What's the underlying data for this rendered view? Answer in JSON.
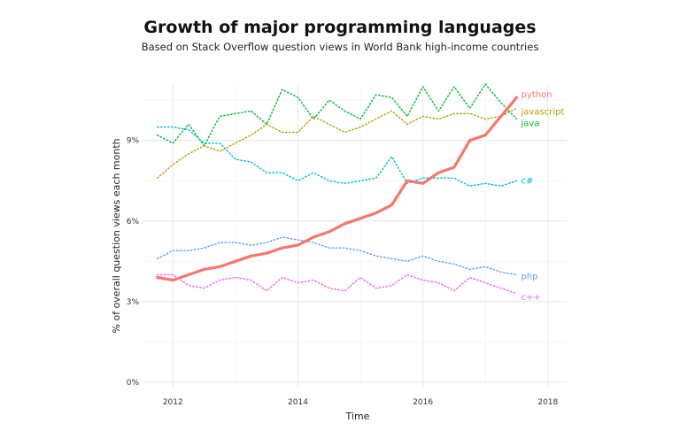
{
  "chart_data": {
    "type": "line",
    "title": "Growth of major programming languages",
    "subtitle": "Based on Stack Overflow question views in World Bank high-income countries",
    "xlabel": "Time",
    "ylabel": "% of overall question views each month",
    "xlim": [
      2011.5,
      2018.3
    ],
    "ylim": [
      -0.2,
      11.1
    ],
    "xticks": [
      2012,
      2014,
      2016,
      2018
    ],
    "xtick_labels": [
      "2012",
      "2014",
      "2016",
      "2018"
    ],
    "yticks": [
      0,
      3,
      6,
      9
    ],
    "ytick_labels": [
      "0%",
      "3%",
      "6%",
      "9%"
    ],
    "grid": true,
    "legend": "direct labels at line ends (right)",
    "x": [
      2011.75,
      2012,
      2012.25,
      2012.5,
      2012.75,
      2013,
      2013.25,
      2013.5,
      2013.75,
      2014,
      2014.25,
      2014.5,
      2014.75,
      2015,
      2015.25,
      2015.5,
      2015.75,
      2016,
      2016.25,
      2016.5,
      2016.75,
      2017,
      2017.25,
      2017.5
    ],
    "series": [
      {
        "name": "python",
        "color": "#f8766d",
        "style": "solid",
        "values": [
          3.9,
          3.8,
          4.0,
          4.2,
          4.3,
          4.5,
          4.7,
          4.8,
          5.0,
          5.1,
          5.4,
          5.6,
          5.9,
          6.1,
          6.3,
          6.6,
          7.5,
          7.4,
          7.8,
          8.0,
          9.0,
          9.2,
          9.9,
          10.6
        ]
      },
      {
        "name": "javascript",
        "color": "#b79f00",
        "style": "dotted",
        "values": [
          7.6,
          8.1,
          8.5,
          8.8,
          8.6,
          8.9,
          9.2,
          9.6,
          9.3,
          9.3,
          9.9,
          9.6,
          9.3,
          9.5,
          9.8,
          10.1,
          9.6,
          9.9,
          9.8,
          10.0,
          10.0,
          9.8,
          9.9,
          10.2
        ]
      },
      {
        "name": "java",
        "color": "#00ba38",
        "style": "dotted",
        "values": [
          9.2,
          8.9,
          9.6,
          8.8,
          9.9,
          10.0,
          10.1,
          9.6,
          10.9,
          10.6,
          9.8,
          10.5,
          10.1,
          9.8,
          10.7,
          10.6,
          9.9,
          11.0,
          10.1,
          11.0,
          10.2,
          11.1,
          10.4,
          9.8
        ]
      },
      {
        "name": "c#",
        "color": "#00bfc4",
        "style": "dotted",
        "values": [
          9.5,
          9.5,
          9.4,
          8.9,
          8.9,
          8.3,
          8.2,
          7.8,
          7.8,
          7.5,
          7.8,
          7.5,
          7.4,
          7.5,
          7.6,
          8.4,
          7.4,
          7.6,
          7.6,
          7.6,
          7.3,
          7.4,
          7.3,
          7.5
        ]
      },
      {
        "name": "php",
        "color": "#619cff",
        "style": "dotted",
        "values": [
          4.6,
          4.9,
          4.9,
          5.0,
          5.2,
          5.2,
          5.1,
          5.2,
          5.4,
          5.3,
          5.2,
          5.0,
          5.0,
          4.9,
          4.7,
          4.6,
          4.5,
          4.7,
          4.5,
          4.4,
          4.2,
          4.3,
          4.1,
          4.0
        ]
      },
      {
        "name": "c++",
        "color": "#f564e3",
        "style": "dotted",
        "values": [
          4.0,
          4.0,
          3.6,
          3.5,
          3.8,
          3.9,
          3.8,
          3.4,
          3.9,
          3.7,
          3.8,
          3.5,
          3.4,
          3.9,
          3.5,
          3.6,
          4.0,
          3.8,
          3.7,
          3.4,
          3.9,
          3.7,
          3.5,
          3.3
        ]
      }
    ]
  }
}
